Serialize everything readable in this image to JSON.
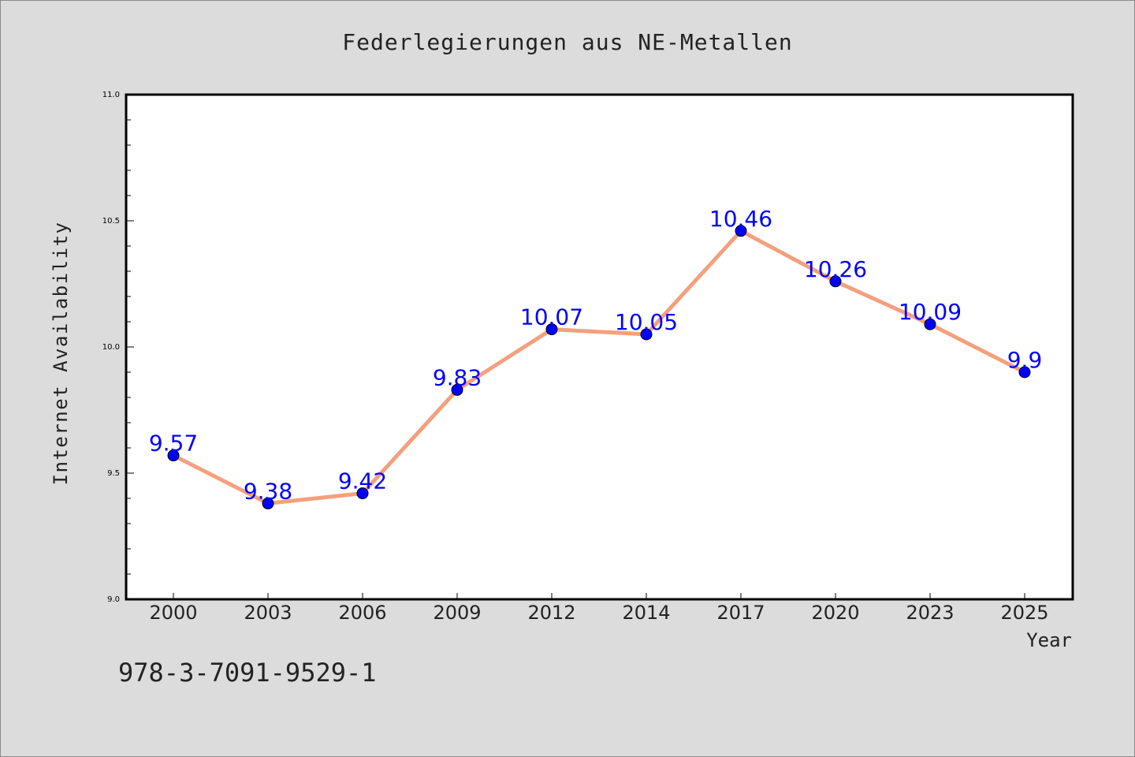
{
  "chart_data": {
    "type": "line",
    "title": "Federlegierungen aus NE-Metallen",
    "xlabel": "Year",
    "ylabel": "Internet Availability",
    "categories": [
      "2000",
      "2003",
      "2006",
      "2009",
      "2012",
      "2014",
      "2017",
      "2020",
      "2023",
      "2025"
    ],
    "series": [
      {
        "values": [
          9.57,
          9.38,
          9.42,
          9.83,
          10.07,
          10.05,
          10.46,
          10.26,
          10.09,
          9.9
        ],
        "data_labels": [
          "9.57",
          "9.38",
          "9.42",
          "9.83",
          "10.07",
          "10.05",
          "10.46",
          "10.26",
          "10.09",
          "9.9"
        ]
      }
    ],
    "ylim": [
      9.0,
      11.0
    ],
    "yticks": [
      "9.0",
      "9.5",
      "10.0",
      "10.5",
      "11.0"
    ],
    "grid": false,
    "colors": {
      "line": "#f4a07e",
      "marker": "#0000ff",
      "label": "#0000ff",
      "background": "#dcdcdc",
      "plot_area": "#ffffff"
    },
    "footnote": "978-3-7091-9529-1"
  }
}
